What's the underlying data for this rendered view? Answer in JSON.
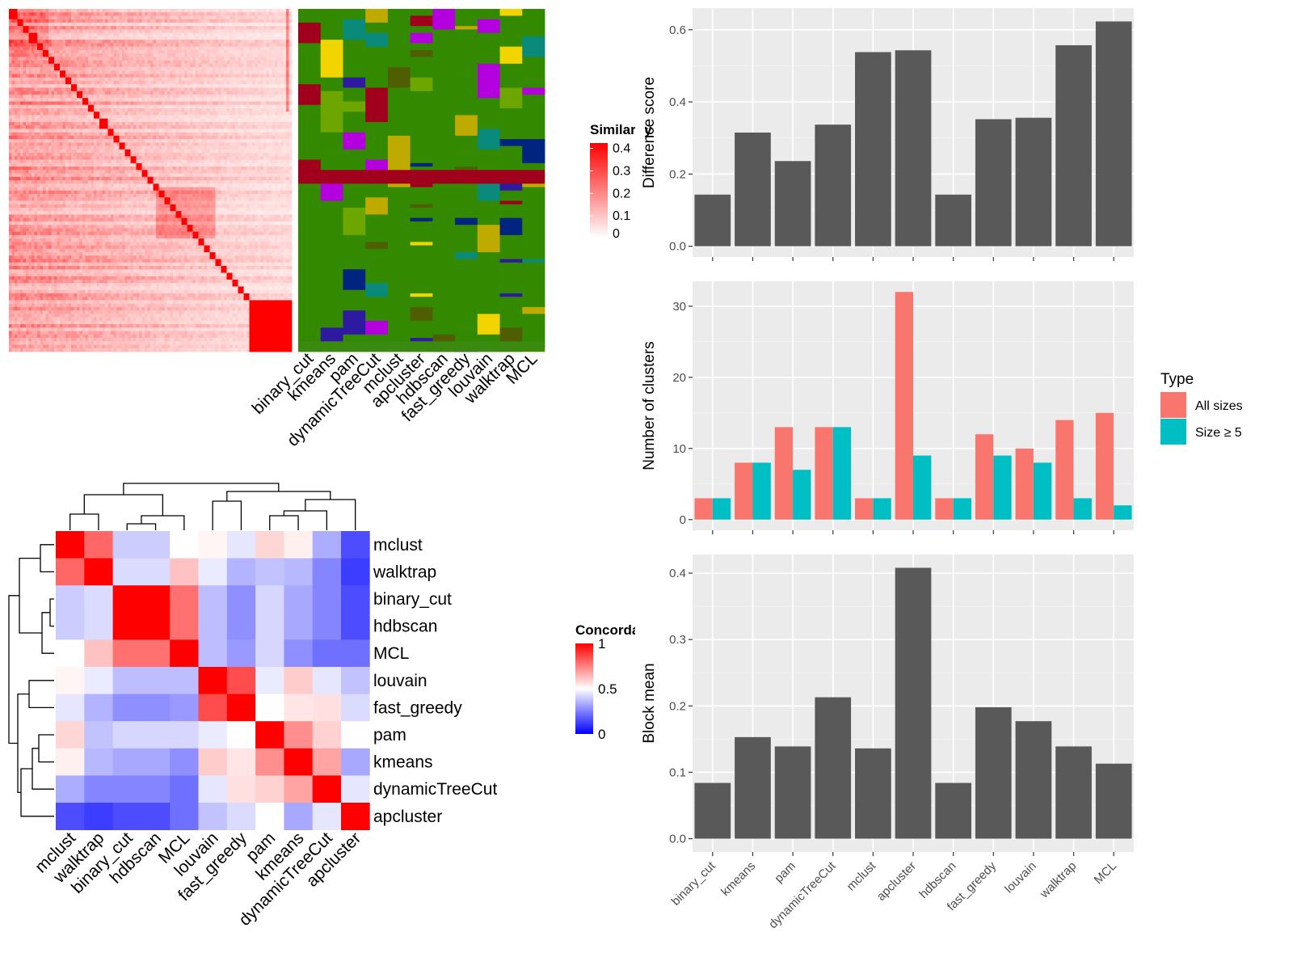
{
  "colors": {
    "panel_bg": "#ebebeb",
    "grid_major": "#ffffff",
    "bar_fill": "#595959",
    "type_all_sizes": "#f8766d",
    "type_size_ge5": "#00bfc4",
    "heat_high": "#ff0000",
    "heat_mid": "#ffffff",
    "heat_low": "#0000ff"
  },
  "chart_data": [
    {
      "type": "heatmap",
      "id": "similarity-heatmap",
      "n": 100,
      "diag_blocks": [
        3,
        2,
        2,
        3,
        2,
        2,
        2,
        2,
        2,
        2,
        2,
        2,
        2,
        2,
        2,
        3,
        2,
        2,
        2,
        2,
        2,
        2,
        2,
        2,
        2,
        2,
        2,
        2,
        2,
        2,
        2,
        2,
        2,
        2,
        2,
        2,
        2,
        2,
        2,
        2,
        2,
        4
      ],
      "legend": {
        "title": "Similarity",
        "ticks": [
          "0.4",
          "0.3",
          "0.2",
          "0.1",
          "0"
        ],
        "values": [
          0.4,
          0.3,
          0.2,
          0.1,
          0
        ],
        "max": 0.42
      }
    },
    {
      "type": "heatmap",
      "id": "cluster-assignment-grid",
      "columns": [
        "binary_cut",
        "kmeans",
        "pam",
        "dynamicTreeCut",
        "mclust",
        "apcluster",
        "hdbscan",
        "fast_greedy",
        "louvain",
        "walktrap",
        "MCL"
      ],
      "palette": [
        "#338a00",
        "#a0001b",
        "#6ea600",
        "#00247f",
        "#b400de",
        "#0a8a7a",
        "#bfaa00",
        "#4e5e00",
        "#f2d500",
        "#2d1aa0"
      ]
    },
    {
      "type": "heatmap",
      "id": "concordance-heatmap",
      "rows": [
        "mclust",
        "walktrap",
        "binary_cut",
        "hdbscan",
        "MCL",
        "louvain",
        "fast_greedy",
        "pam",
        "kmeans",
        "dynamicTreeCut",
        "apcluster"
      ],
      "columns": [
        "mclust",
        "walktrap",
        "binary_cut",
        "hdbscan",
        "MCL",
        "louvain",
        "fast_greedy",
        "pam",
        "kmeans",
        "dynamicTreeCut",
        "apcluster"
      ],
      "values": [
        [
          1.0,
          0.8,
          0.4,
          0.4,
          0.5,
          0.52,
          0.45,
          0.58,
          0.53,
          0.34,
          0.15
        ],
        [
          0.8,
          1.0,
          0.43,
          0.43,
          0.62,
          0.46,
          0.35,
          0.38,
          0.36,
          0.26,
          0.12
        ],
        [
          0.4,
          0.43,
          1.0,
          1.0,
          0.78,
          0.37,
          0.28,
          0.42,
          0.33,
          0.26,
          0.15
        ],
        [
          0.4,
          0.43,
          1.0,
          1.0,
          0.78,
          0.37,
          0.28,
          0.42,
          0.33,
          0.26,
          0.15
        ],
        [
          0.5,
          0.62,
          0.78,
          0.78,
          1.0,
          0.37,
          0.3,
          0.42,
          0.28,
          0.22,
          0.22
        ],
        [
          0.52,
          0.46,
          0.37,
          0.37,
          0.37,
          1.0,
          0.85,
          0.46,
          0.6,
          0.45,
          0.38
        ],
        [
          0.45,
          0.35,
          0.28,
          0.28,
          0.3,
          0.85,
          1.0,
          0.5,
          0.55,
          0.56,
          0.43
        ],
        [
          0.58,
          0.38,
          0.42,
          0.42,
          0.42,
          0.46,
          0.5,
          1.0,
          0.72,
          0.59,
          0.5
        ],
        [
          0.53,
          0.36,
          0.33,
          0.33,
          0.28,
          0.6,
          0.55,
          0.72,
          1.0,
          0.68,
          0.33
        ],
        [
          0.34,
          0.26,
          0.26,
          0.26,
          0.22,
          0.45,
          0.56,
          0.59,
          0.68,
          1.0,
          0.45
        ],
        [
          0.15,
          0.12,
          0.15,
          0.15,
          0.22,
          0.38,
          0.43,
          0.5,
          0.33,
          0.45,
          1.0
        ]
      ],
      "legend": {
        "title": "Concordance",
        "ticks": [
          "1",
          "0.5",
          "0"
        ],
        "values": [
          1,
          0.5,
          0
        ]
      }
    },
    {
      "type": "bar",
      "id": "difference-score-chart",
      "categories": [
        "binary_cut",
        "kmeans",
        "pam",
        "dynamicTreeCut",
        "mclust",
        "apcluster",
        "hdbscan",
        "fast_greedy",
        "louvain",
        "walktrap",
        "MCL"
      ],
      "values": [
        0.143,
        0.315,
        0.236,
        0.337,
        0.538,
        0.543,
        0.143,
        0.352,
        0.356,
        0.557,
        0.623
      ],
      "ylabel": "Difference score",
      "ylim": [
        -0.03,
        0.66
      ],
      "yticks": [
        0.0,
        0.2,
        0.4,
        0.6
      ],
      "ytick_labels": [
        "0.0",
        "0.2",
        "0.4",
        "0.6"
      ]
    },
    {
      "type": "bar",
      "id": "number-of-clusters-chart",
      "categories": [
        "binary_cut",
        "kmeans",
        "pam",
        "dynamicTreeCut",
        "mclust",
        "apcluster",
        "hdbscan",
        "fast_greedy",
        "louvain",
        "walktrap",
        "MCL"
      ],
      "series": [
        {
          "name": "All sizes",
          "values": [
            3,
            8,
            13,
            13,
            3,
            32,
            3,
            12,
            10,
            14,
            15
          ]
        },
        {
          "name": "Size ≥ 5",
          "values": [
            3,
            8,
            7,
            13,
            3,
            9,
            3,
            9,
            8,
            3,
            2
          ]
        }
      ],
      "ylabel": "Number of clusters",
      "ylim": [
        -1.5,
        33.5
      ],
      "yticks": [
        0,
        10,
        20,
        30
      ],
      "ytick_labels": [
        "0",
        "10",
        "20",
        "30"
      ],
      "legend": {
        "title": "Type",
        "position": "right"
      }
    },
    {
      "type": "bar",
      "id": "block-mean-chart",
      "categories": [
        "binary_cut",
        "kmeans",
        "pam",
        "dynamicTreeCut",
        "mclust",
        "apcluster",
        "hdbscan",
        "fast_greedy",
        "louvain",
        "walktrap",
        "MCL"
      ],
      "values": [
        0.084,
        0.153,
        0.139,
        0.213,
        0.136,
        0.408,
        0.084,
        0.198,
        0.177,
        0.139,
        0.113
      ],
      "ylabel": "Block mean",
      "ylim": [
        -0.02,
        0.428
      ],
      "yticks": [
        0.0,
        0.1,
        0.2,
        0.3,
        0.4
      ],
      "ytick_labels": [
        "0.0",
        "0.1",
        "0.2",
        "0.3",
        "0.4"
      ]
    }
  ]
}
